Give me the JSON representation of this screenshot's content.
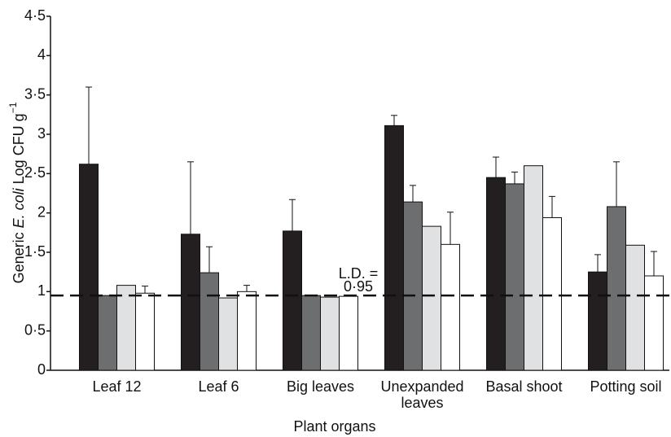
{
  "chart_data": {
    "type": "bar",
    "y_label": [
      "Generic ",
      "E. coli",
      " Log CFU g",
      "−1"
    ],
    "x_label": "Plant organs",
    "categories": [
      "Leaf 12",
      "Leaf 6",
      "Big leaves",
      "Unexpanded leaves",
      "Basal shoot",
      "Potting soil"
    ],
    "series": [
      {
        "color": "#231f20",
        "values": [
          2.62,
          1.73,
          1.77,
          3.11,
          2.45,
          1.25
        ],
        "errors": [
          0.98,
          0.92,
          0.4,
          0.13,
          0.26,
          0.22
        ]
      },
      {
        "color": "#6d6e70",
        "values": [
          0.95,
          1.24,
          0.95,
          2.14,
          2.37,
          2.08
        ],
        "errors": [
          null,
          0.33,
          null,
          0.21,
          0.15,
          0.57
        ]
      },
      {
        "color": "#e0e1e2",
        "values": [
          1.08,
          0.92,
          0.93,
          1.83,
          2.6,
          1.59
        ],
        "errors": [
          null,
          null,
          null,
          null,
          null,
          null
        ]
      },
      {
        "color": "#ffffff",
        "values": [
          0.98,
          1.0,
          0.94,
          1.6,
          1.94,
          1.2
        ],
        "errors": [
          0.09,
          0.08,
          null,
          0.41,
          0.27,
          0.31
        ]
      }
    ],
    "reference_line": {
      "text": "L.D. =",
      "value": 0.95,
      "label": "0·95"
    },
    "ylim": [
      0,
      4.5
    ],
    "yticks": [
      0,
      {
        "value": 0.5,
        "label": "0·5"
      },
      1,
      {
        "value": 1.5,
        "label": "1·5"
      },
      2,
      {
        "value": 2.5,
        "label": "2·5"
      },
      3,
      {
        "value": 3.5,
        "label": "3·5"
      },
      4,
      {
        "value": 4.5,
        "label": "4·5"
      }
    ]
  }
}
